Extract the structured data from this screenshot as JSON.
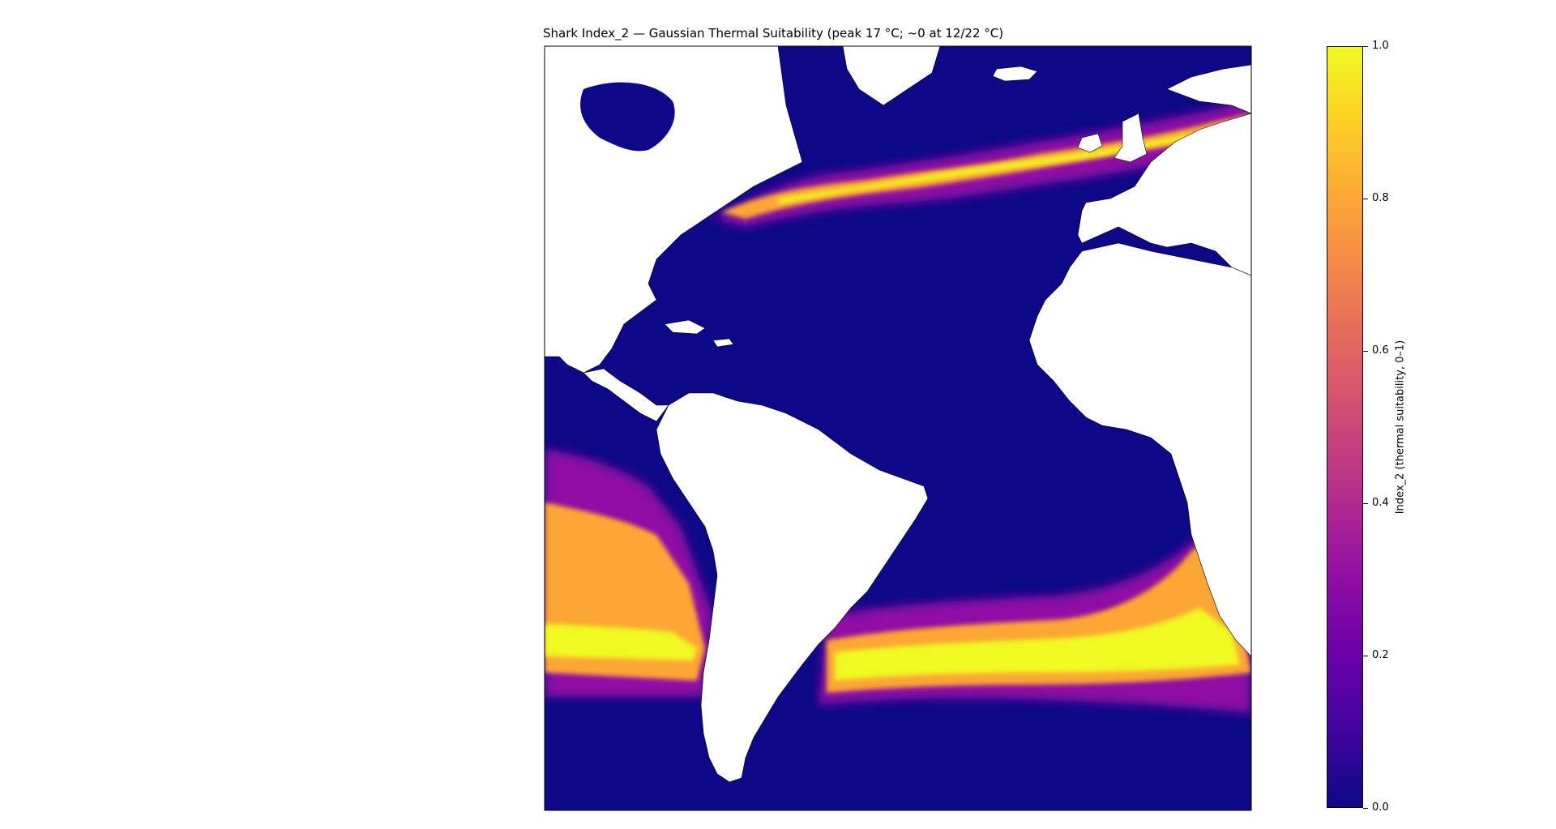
{
  "title": "Shark Index_2 — Gaussian Thermal Suitability (peak 17 °C; ~0 at 12/22 °C)",
  "colorbar": {
    "label": "Index_2 (thermal suitability, 0–1)",
    "ticks": [
      "0.0",
      "0.2",
      "0.4",
      "0.6",
      "0.8",
      "1.0"
    ],
    "tick_values": [
      0.0,
      0.2,
      0.4,
      0.6,
      0.8,
      1.0
    ],
    "colormap": "plasma",
    "min_color": "#0d0887",
    "max_color": "#f0f921"
  },
  "map": {
    "region": "Atlantic Ocean",
    "ocean_base_color": "#0d0887",
    "land_color": "#ffffff",
    "high_suitability_color": "#fcce25",
    "mid_suitability_color": "#b12a90"
  }
}
